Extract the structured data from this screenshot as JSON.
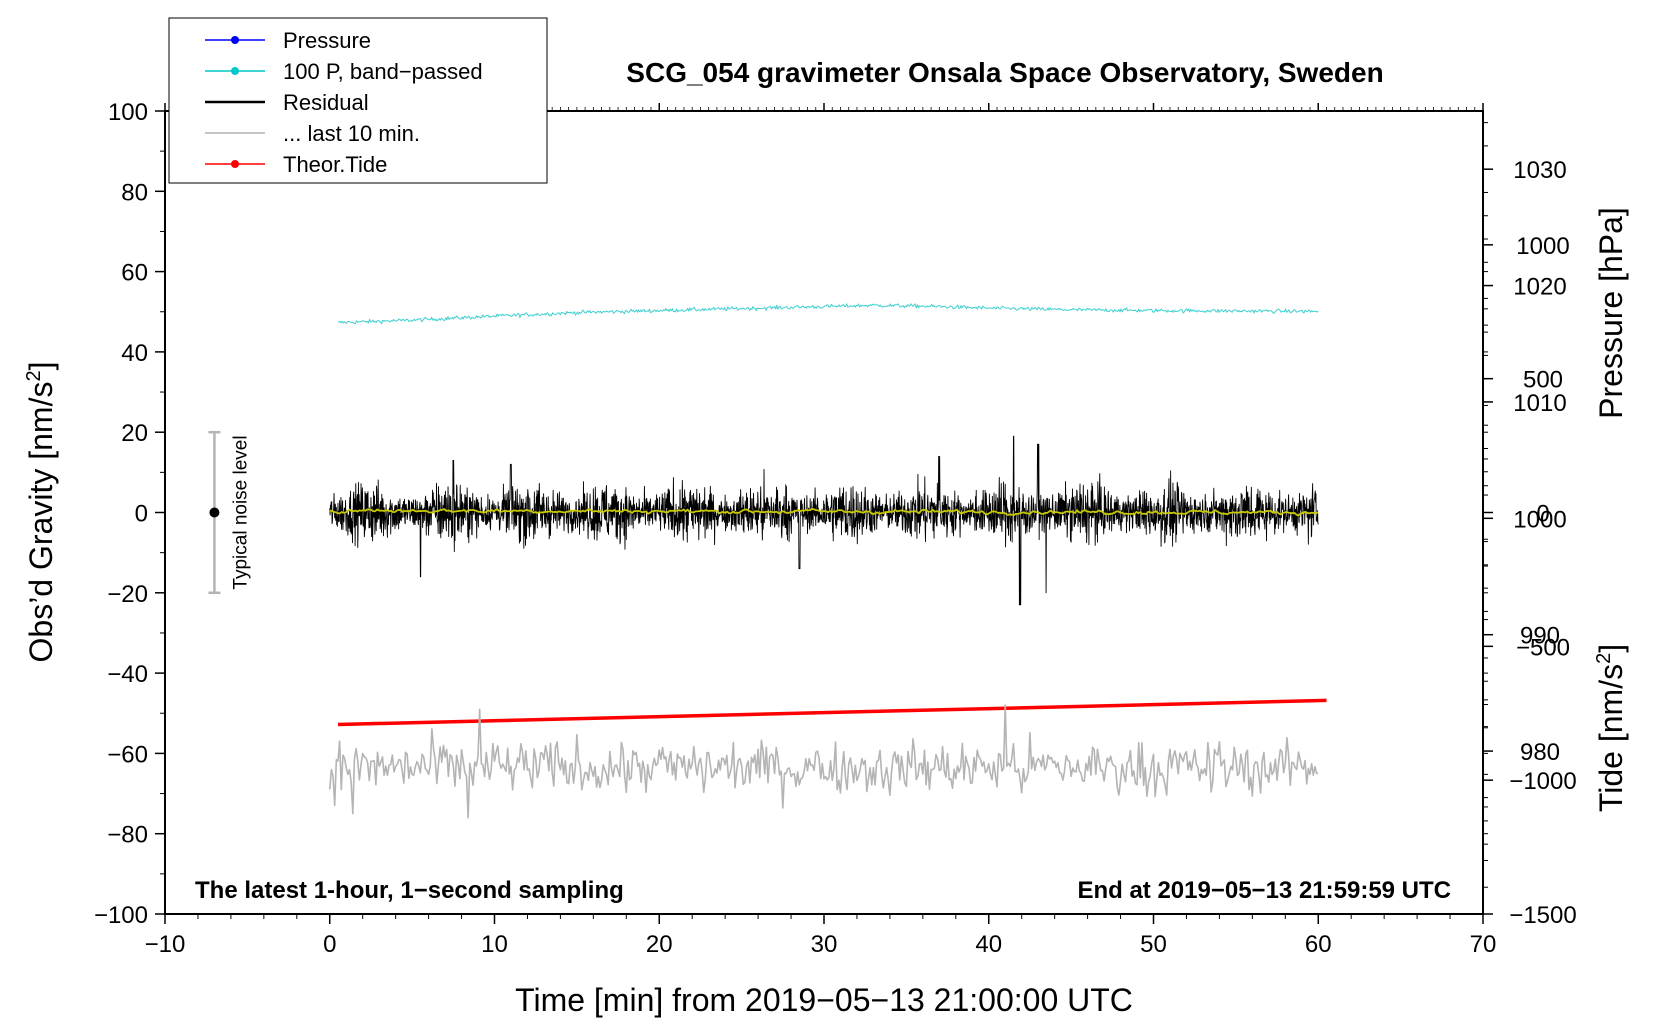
{
  "chart_data": {
    "type": "line",
    "title": "SCG_054 gravimeter Onsala Space Observatory, Sweden",
    "xlabel": "Time [min] from 2019−05−13 21:00:00 UTC",
    "ylabel_main": "Obs’d Gravity [nm/s",
    "ylabel_main_sup": "2",
    "ylabel_main_close": "]",
    "ylabel_pressure": "Pressure [hPa]",
    "ylabel_tide": "Tide [nm/s",
    "ylabel_tide_sup": "2",
    "ylabel_tide_close": "]",
    "xlim": [
      -10,
      70
    ],
    "ylim": [
      -100,
      100
    ],
    "pressure_lim": [
      966,
      1035
    ],
    "tide_lim": [
      -1500,
      1500
    ],
    "x_ticks": [
      "−10",
      "0",
      "10",
      "20",
      "30",
      "40",
      "50",
      "60",
      "70"
    ],
    "x_tick_values": [
      -10,
      0,
      10,
      20,
      30,
      40,
      50,
      60,
      70
    ],
    "y_ticks": [
      "100",
      "80",
      "60",
      "40",
      "20",
      "0",
      "−20",
      "−40",
      "−60",
      "−80",
      "−100"
    ],
    "y_tick_values": [
      100,
      80,
      60,
      40,
      20,
      0,
      -20,
      -40,
      -60,
      -80,
      -100
    ],
    "pressure_ticks": [
      "1030",
      "1020",
      "1010",
      "1000",
      "990",
      "980"
    ],
    "pressure_tick_values": [
      1030,
      1020,
      1010,
      1000,
      990,
      980
    ],
    "tide_ticks": [
      "1000",
      "500",
      "0",
      "−500",
      "−1000",
      "−1500"
    ],
    "tide_tick_values": [
      1000,
      500,
      0,
      -500,
      -1000,
      -1500
    ],
    "note_left": "The latest 1-hour, 1−second sampling",
    "note_right": "End at 2019−05−13 21:59:59 UTC",
    "noise_label": "Typical noise level",
    "noise_level": {
      "x": -7,
      "center": 0,
      "low": -20,
      "high": 20
    },
    "legend": [
      {
        "label": "Pressure",
        "color": "#0000ff",
        "style": "line-dot"
      },
      {
        "label": "100 P, band−passed",
        "color": "#00c8c8",
        "style": "line-dot"
      },
      {
        "label": "Residual",
        "color": "#000000",
        "style": "line"
      },
      {
        "label": "... last 10 min.",
        "color": "#b4b4b4",
        "style": "line"
      },
      {
        "label": "Theor.Tide",
        "color": "#ff0000",
        "style": "line-dot"
      }
    ],
    "series": [
      {
        "name": "100 P, band−passed",
        "color": "#40d0d0",
        "x": [
          0.5,
          5,
          10,
          15,
          20,
          25,
          30,
          33,
          36,
          40,
          45,
          50,
          55,
          60
        ],
        "y": [
          47.3,
          47.9,
          48.9,
          49.8,
          50.3,
          50.8,
          51.3,
          51.6,
          51.4,
          50.9,
          50.5,
          50.3,
          50.2,
          50.1
        ],
        "noise": 0.35
      },
      {
        "name": "Residual",
        "color": "#000000",
        "x": [
          0,
          60
        ],
        "y": [
          0,
          0
        ],
        "noise": 5.5,
        "spikes": [
          {
            "x": 41.9,
            "y": -23
          },
          {
            "x": 41.5,
            "y": 19
          },
          {
            "x": 43.5,
            "y": -20
          },
          {
            "x": 43.0,
            "y": 17
          },
          {
            "x": 5.5,
            "y": -16
          },
          {
            "x": 7.5,
            "y": 13
          },
          {
            "x": 11.0,
            "y": 12
          },
          {
            "x": 28.5,
            "y": -14
          },
          {
            "x": 37.0,
            "y": 14
          }
        ]
      },
      {
        "name": "Residual smoothed",
        "color": "#c8c800",
        "x": [
          0,
          60
        ],
        "y": [
          0.5,
          0.0
        ],
        "noise": 0.5
      },
      {
        "name": "Theor.Tide",
        "color": "#ff0000",
        "x": [
          0.5,
          60.5
        ],
        "y": [
          -52.8,
          -46.8
        ]
      },
      {
        "name": "... last 10 min.",
        "color": "#b4b4b4",
        "x": [
          0,
          60
        ],
        "y": [
          -63.5,
          -63.5
        ],
        "noise": 4.5,
        "spikes": [
          {
            "x": 9.1,
            "y": -49
          },
          {
            "x": 41.0,
            "y": -48
          },
          {
            "x": 8.4,
            "y": -76
          },
          {
            "x": 1.4,
            "y": -75
          },
          {
            "x": 0.0,
            "y": -69
          }
        ]
      }
    ]
  }
}
